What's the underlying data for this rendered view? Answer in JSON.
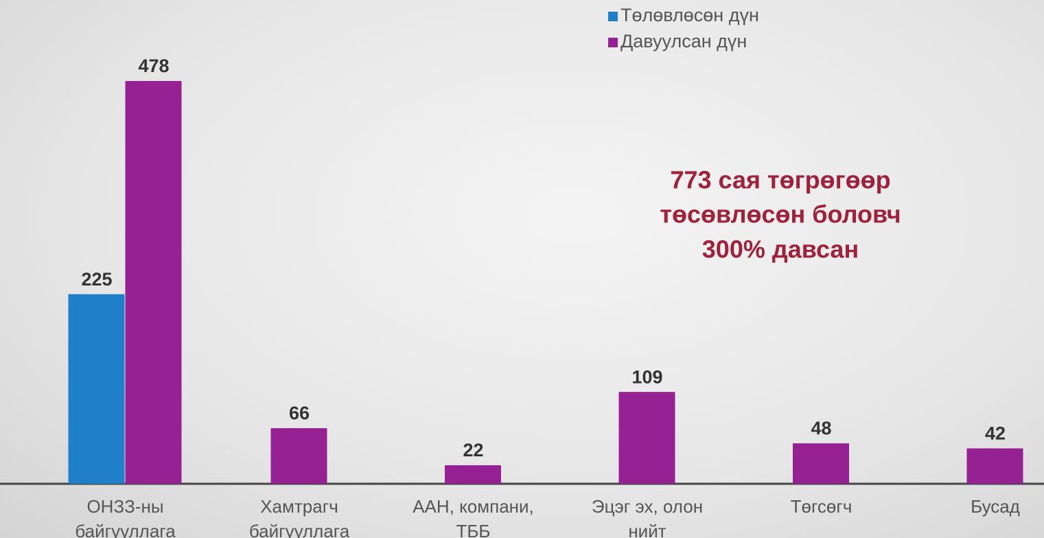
{
  "chart_data": {
    "type": "bar",
    "categories": [
      "ОНЗЗ-ны байгууллага",
      "Хамтрагч байгууллага",
      "ААН, компани, ТББ",
      "Эцэг эх, олон нийт",
      "Төгсөгч",
      "Бусад"
    ],
    "series": [
      {
        "name": "Төлөвлөсөн дүн",
        "color": "#1f7fc9",
        "values": [
          225,
          null,
          null,
          null,
          null,
          null
        ]
      },
      {
        "name": "Давуулсан дүн",
        "color": "#952193",
        "values": [
          478,
          66,
          22,
          109,
          48,
          42
        ]
      }
    ],
    "ylim": [
      0,
      500
    ],
    "annotation": [
      "773 сая төгрөгөөр",
      "төсөвлөсөн боловч",
      "300% давсан"
    ]
  }
}
